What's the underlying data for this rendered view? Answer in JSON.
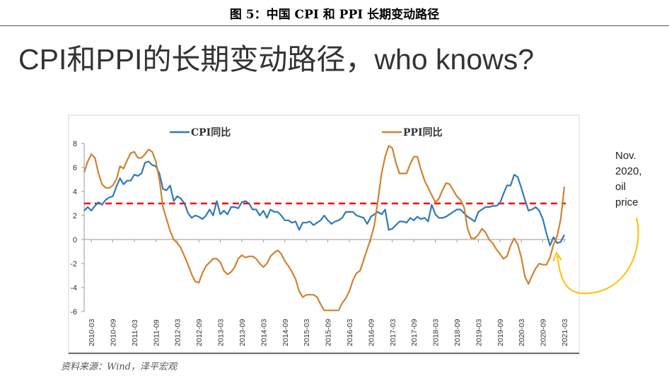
{
  "figure_title": "图 5：中国 CPI 和 PPI 长期变动路径",
  "heading": "CPI和PPI的长期变动路径，who knows?",
  "source": "资料来源：Wind，泽平宏观",
  "annotation": [
    "Nov.",
    "2020,",
    "oil",
    "price"
  ],
  "chart_data": {
    "type": "line",
    "title": "",
    "xlabel": "",
    "ylabel": "",
    "ylim": [
      -6,
      8
    ],
    "yticks": [
      8,
      6,
      4,
      2,
      0,
      -2,
      -4,
      -6
    ],
    "xtick_labels": [
      "2010-03",
      "2010-09",
      "2011-03",
      "2011-09",
      "2012-03",
      "2012-09",
      "2013-03",
      "2013-09",
      "2014-03",
      "2014-09",
      "2015-03",
      "2015-09",
      "2016-03",
      "2016-09",
      "2017-03",
      "2017-09",
      "2018-03",
      "2018-09",
      "2019-03",
      "2019-09",
      "2020-03",
      "2020-09",
      "2021-03"
    ],
    "x_start": "2010-01",
    "x_end": "2021-03",
    "frequency": "monthly",
    "reference_line": {
      "value": 3,
      "color": "#ff0000",
      "style": "dashed"
    },
    "legend_position": "top",
    "series": [
      {
        "name": "CPI同比",
        "color": "#2e7ab8",
        "values": [
          2.4,
          2.7,
          2.4,
          2.8,
          3.1,
          2.9,
          3.3,
          3.5,
          3.6,
          4.4,
          5.1,
          4.6,
          4.9,
          4.9,
          5.4,
          5.3,
          5.5,
          6.4,
          6.5,
          6.2,
          6.1,
          5.5,
          4.2,
          4.1,
          4.5,
          3.2,
          3.6,
          3.4,
          3.0,
          2.2,
          1.8,
          2.0,
          1.9,
          1.7,
          2.0,
          2.5,
          2.0,
          3.2,
          2.1,
          2.4,
          2.1,
          2.7,
          2.7,
          2.6,
          3.1,
          3.2,
          3.0,
          2.5,
          2.5,
          2.0,
          2.4,
          1.8,
          2.5,
          2.3,
          2.3,
          2.0,
          1.6,
          1.6,
          1.4,
          1.5,
          0.8,
          1.4,
          1.4,
          1.5,
          1.2,
          1.4,
          1.6,
          2.0,
          1.6,
          1.3,
          1.5,
          1.6,
          1.8,
          2.3,
          2.3,
          2.3,
          2.0,
          1.9,
          1.8,
          1.3,
          1.9,
          2.1,
          2.3,
          2.1,
          2.5,
          0.8,
          0.9,
          1.2,
          1.5,
          1.5,
          1.4,
          1.8,
          1.6,
          1.9,
          1.7,
          1.8,
          1.5,
          2.9,
          2.1,
          1.8,
          1.8,
          1.9,
          2.1,
          2.3,
          2.5,
          2.5,
          2.2,
          1.9,
          1.7,
          1.5,
          2.3,
          2.5,
          2.7,
          2.7,
          2.8,
          2.8,
          3.0,
          3.8,
          4.5,
          4.5,
          5.4,
          5.2,
          4.3,
          3.3,
          2.4,
          2.5,
          2.7,
          2.4,
          1.7,
          0.5,
          -0.5,
          0.2,
          -0.3,
          -0.2,
          0.4
        ]
      },
      {
        "name": "PPI同比",
        "color": "#d0822e",
        "values": [
          5.6,
          6.5,
          7.1,
          6.8,
          5.5,
          4.6,
          4.3,
          4.3,
          4.5,
          5.0,
          6.1,
          5.9,
          6.6,
          7.2,
          7.3,
          6.8,
          6.8,
          7.1,
          7.5,
          7.3,
          6.5,
          5.0,
          2.7,
          1.7,
          0.7,
          0.0,
          -0.3,
          -0.7,
          -1.4,
          -2.1,
          -2.9,
          -3.5,
          -3.6,
          -2.8,
          -2.2,
          -1.9,
          -1.6,
          -1.6,
          -1.9,
          -2.6,
          -2.9,
          -2.7,
          -2.3,
          -1.6,
          -1.3,
          -1.5,
          -1.4,
          -1.4,
          -1.6,
          -2.0,
          -2.3,
          -2.0,
          -1.4,
          -1.1,
          -0.9,
          -1.2,
          -1.8,
          -2.2,
          -2.7,
          -3.3,
          -4.3,
          -4.8,
          -4.6,
          -4.6,
          -4.6,
          -4.8,
          -5.4,
          -5.9,
          -5.9,
          -5.9,
          -5.9,
          -5.9,
          -5.3,
          -4.9,
          -4.3,
          -3.4,
          -2.8,
          -2.6,
          -1.7,
          -0.8,
          0.1,
          1.2,
          3.3,
          5.5,
          6.9,
          7.8,
          7.6,
          6.4,
          5.5,
          5.5,
          5.5,
          6.3,
          6.9,
          6.9,
          5.8,
          4.9,
          4.3,
          3.7,
          3.1,
          3.4,
          4.1,
          4.7,
          4.6,
          4.1,
          3.6,
          3.3,
          2.7,
          0.9,
          0.1,
          0.1,
          0.4,
          0.9,
          0.6,
          0.0,
          -0.3,
          -0.8,
          -1.2,
          -1.6,
          -1.4,
          -0.5,
          0.1,
          -0.4,
          -1.5,
          -3.1,
          -3.7,
          -3.0,
          -2.4,
          -2.0,
          -2.1,
          -2.1,
          -1.5,
          -0.4,
          0.3,
          1.7,
          4.4
        ]
      }
    ]
  }
}
